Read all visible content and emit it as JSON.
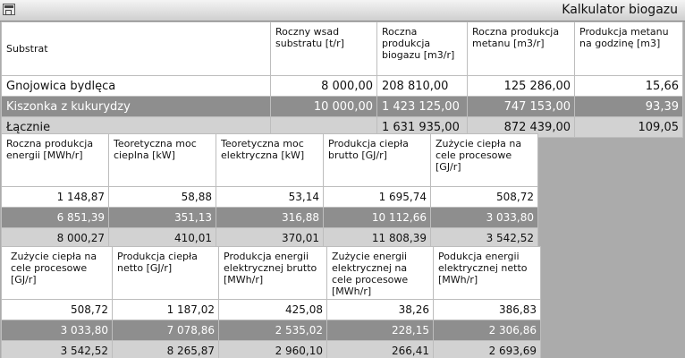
{
  "window": {
    "title": "Kalkulator biogazu",
    "icon": "app-form-icon"
  },
  "table1": {
    "headers": [
      "Substrat",
      "Roczny wsad substratu [t/r]",
      "Roczna produkcja biogazu [m3/r]",
      "Roczna produkcja metanu [m3/r]",
      "Produkcja metanu na godzinę [m3]"
    ],
    "rows": [
      [
        "Gnojowica bydlęca",
        "8 000,00",
        "208 810,00",
        "125 286,00",
        "15,66"
      ],
      [
        "Kiszonka z kukurydzy",
        "10 000,00",
        "1 423 125,00",
        "747 153,00",
        "93,39"
      ],
      [
        "Łącznie",
        "",
        "1 631 935,00",
        "872 439,00",
        "109,05"
      ]
    ]
  },
  "table2": {
    "headers": [
      "Roczna produkcja energii [MWh/r]",
      "Teoretyczna moc cieplna [kW]",
      "Teoretyczna moc elektryczna [kW]",
      "Produkcja ciepła brutto [GJ/r]",
      "Zużycie ciepła na cele procesowe [GJ/r]"
    ],
    "rows": [
      [
        "1 148,87",
        "58,88",
        "53,14",
        "1 695,74",
        "508,72"
      ],
      [
        "6 851,39",
        "351,13",
        "316,88",
        "10 112,66",
        "3 033,80"
      ],
      [
        "8 000,27",
        "410,01",
        "370,01",
        "11 808,39",
        "3 542,52"
      ]
    ]
  },
  "table3": {
    "headers": [
      "Zużycie ciepła na cele procesowe [GJ/r]",
      "Produkcja ciepła netto [GJ/r]",
      "Produkcja energii elektrycznej brutto [MWh/r]",
      "Zużycie energii elektrycznej na cele procesowe [MWh/r]",
      "Podukcja energii elektrycznej netto [MWh/r]"
    ],
    "rows": [
      [
        "508,72",
        "1 187,02",
        "425,08",
        "38,26",
        "386,83"
      ],
      [
        "3 033,80",
        "7 078,86",
        "2 535,02",
        "228,15",
        "2 306,86"
      ],
      [
        "3 542,52",
        "8 265,87",
        "2 960,10",
        "266,41",
        "2 693,69"
      ]
    ]
  }
}
